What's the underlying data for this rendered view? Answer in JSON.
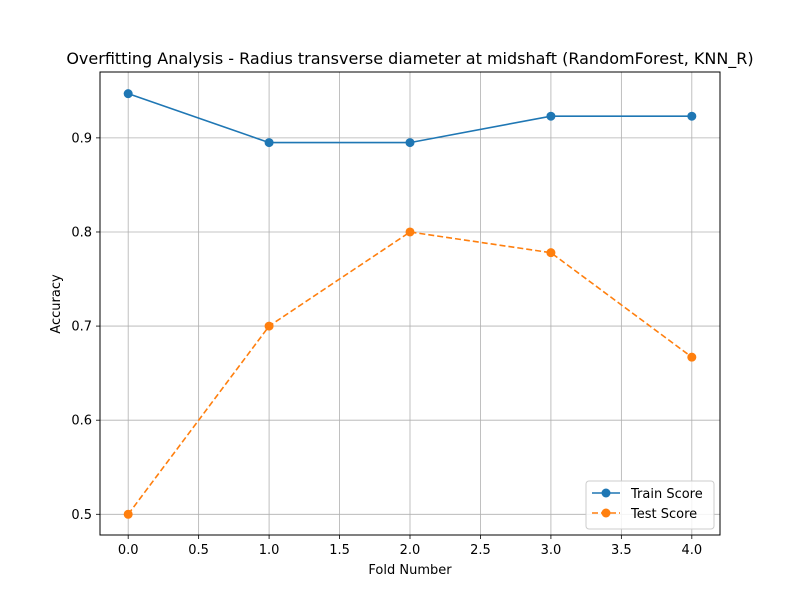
{
  "chart_data": {
    "type": "line",
    "title": "Overfitting Analysis - Radius transverse diameter at midshaft (RandomForest, KNN_R)",
    "xlabel": "Fold Number",
    "ylabel": "Accuracy",
    "x": [
      0,
      1,
      2,
      3,
      4
    ],
    "xlim": [
      -0.2,
      4.2
    ],
    "ylim": [
      0.478,
      0.97
    ],
    "xticks": [
      0.0,
      0.5,
      1.0,
      1.5,
      2.0,
      2.5,
      3.0,
      3.5,
      4.0
    ],
    "xtick_labels": [
      "0.0",
      "0.5",
      "1.0",
      "1.5",
      "2.0",
      "2.5",
      "3.0",
      "3.5",
      "4.0"
    ],
    "yticks": [
      0.5,
      0.6,
      0.7,
      0.8,
      0.9
    ],
    "ytick_labels": [
      "0.5",
      "0.6",
      "0.7",
      "0.8",
      "0.9"
    ],
    "grid": true,
    "legend_position": "lower-right",
    "series": [
      {
        "name": "Train Score",
        "values": [
          0.947,
          0.895,
          0.895,
          0.923,
          0.923
        ],
        "color": "#1f77b4",
        "linestyle": "solid",
        "marker": "circle"
      },
      {
        "name": "Test Score",
        "values": [
          0.5,
          0.7,
          0.8,
          0.778,
          0.667
        ],
        "color": "#ff7f0e",
        "linestyle": "dashed",
        "marker": "circle"
      }
    ]
  }
}
